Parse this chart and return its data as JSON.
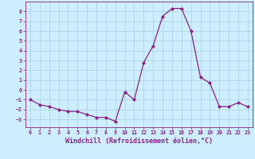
{
  "x": [
    0,
    1,
    2,
    3,
    4,
    5,
    6,
    7,
    8,
    9,
    10,
    11,
    12,
    13,
    14,
    15,
    16,
    17,
    18,
    19,
    20,
    21,
    22,
    23
  ],
  "y": [
    -1,
    -1.5,
    -1.7,
    -2.0,
    -2.2,
    -2.2,
    -2.5,
    -2.8,
    -2.8,
    -3.2,
    -0.2,
    -1.0,
    2.8,
    4.5,
    7.5,
    8.3,
    8.3,
    6.0,
    1.3,
    0.7,
    -1.7,
    -1.7,
    -1.3,
    -1.7
  ],
  "line_color": "#882288",
  "marker": "D",
  "markersize": 2.0,
  "linewidth": 0.9,
  "bg_color": "#cceeff",
  "grid_color": "#aaccdd",
  "xlabel": "Windchill (Refroidissement éolien,°C)",
  "xlabel_color": "#882288",
  "tick_color": "#882288",
  "xlim": [
    -0.5,
    23.5
  ],
  "ylim": [
    -3.8,
    9.0
  ],
  "yticks": [
    -3,
    -2,
    -1,
    0,
    1,
    2,
    3,
    4,
    5,
    6,
    7,
    8
  ],
  "xticks": [
    0,
    1,
    2,
    3,
    4,
    5,
    6,
    7,
    8,
    9,
    10,
    11,
    12,
    13,
    14,
    15,
    16,
    17,
    18,
    19,
    20,
    21,
    22,
    23
  ],
  "tick_fontsize": 4.8,
  "xlabel_fontsize": 6.0
}
